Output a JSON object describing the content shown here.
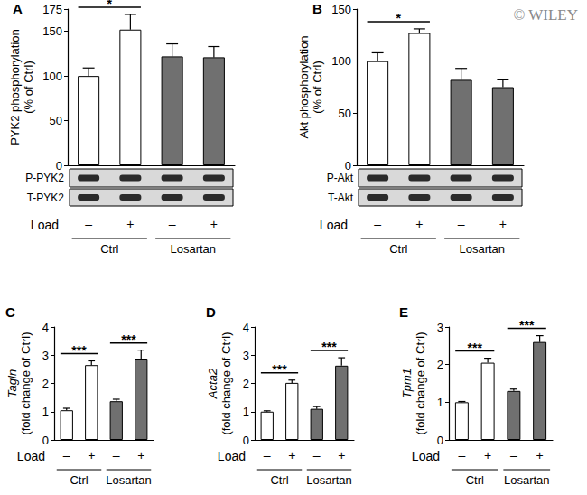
{
  "watermark": "© WILEY",
  "chart_data": [
    {
      "panel": "A",
      "type": "bar",
      "y_label": [
        "PYK2 phosphorylation",
        "(% of Ctrl)"
      ],
      "categories": [
        "–",
        "+",
        "–",
        "+"
      ],
      "x_label": "Load",
      "values": [
        100,
        152,
        122,
        121
      ],
      "errors": [
        9,
        17,
        14,
        12
      ],
      "colors": [
        "#ffffff",
        "#ffffff",
        "#707070",
        "#707070"
      ],
      "ylim": [
        0,
        175
      ],
      "yticks": [
        0,
        50,
        100,
        150
      ],
      "groups": [
        {
          "label": "Ctrl",
          "span": [
            0,
            1
          ]
        },
        {
          "label": "Losartan",
          "span": [
            2,
            3
          ]
        }
      ],
      "significance": [
        {
          "pair": [
            0,
            1
          ],
          "label": "*"
        }
      ],
      "blots": [
        "P-PYK2",
        "T-PYK2"
      ]
    },
    {
      "panel": "B",
      "type": "bar",
      "y_label": [
        "Akt phosphorylation",
        "(% of Ctrl)"
      ],
      "categories": [
        "–",
        "+",
        "–",
        "+"
      ],
      "x_label": "Load",
      "values": [
        100,
        127,
        82,
        75
      ],
      "errors": [
        8,
        4,
        11,
        7
      ],
      "colors": [
        "#ffffff",
        "#ffffff",
        "#707070",
        "#707070"
      ],
      "ylim": [
        0,
        150
      ],
      "yticks": [
        0,
        50,
        100,
        150
      ],
      "groups": [
        {
          "label": "Ctrl",
          "span": [
            0,
            1
          ]
        },
        {
          "label": "Losartan",
          "span": [
            2,
            3
          ]
        }
      ],
      "significance": [
        {
          "pair": [
            0,
            1
          ],
          "label": "*"
        }
      ],
      "blots": [
        "P-Akt",
        "T-Akt"
      ]
    },
    {
      "panel": "C",
      "type": "bar",
      "y_label": [
        "Tagln",
        "(fold change of Ctrl)"
      ],
      "categories": [
        "–",
        "+",
        "–",
        "+"
      ],
      "x_label": "Load",
      "values": [
        1.05,
        2.65,
        1.37,
        2.88
      ],
      "errors": [
        0.07,
        0.15,
        0.07,
        0.3
      ],
      "colors": [
        "#ffffff",
        "#ffffff",
        "#707070",
        "#707070"
      ],
      "ylim": [
        0,
        4
      ],
      "yticks": [
        0,
        1,
        2,
        3,
        4
      ],
      "groups": [
        {
          "label": "Ctrl",
          "span": [
            0,
            1
          ]
        },
        {
          "label": "Losartan",
          "span": [
            2,
            3
          ]
        }
      ],
      "significance": [
        {
          "pair": [
            0,
            1
          ],
          "label": "***"
        },
        {
          "pair": [
            2,
            3
          ],
          "label": "***"
        }
      ]
    },
    {
      "panel": "D",
      "type": "bar",
      "y_label": [
        "Acta2",
        "(fold change of Ctrl)"
      ],
      "categories": [
        "–",
        "+",
        "–",
        "+"
      ],
      "x_label": "Load",
      "values": [
        1.0,
        2.02,
        1.1,
        2.63
      ],
      "errors": [
        0.03,
        0.1,
        0.08,
        0.28
      ],
      "colors": [
        "#ffffff",
        "#ffffff",
        "#707070",
        "#707070"
      ],
      "ylim": [
        0,
        4
      ],
      "yticks": [
        0,
        1,
        2,
        3,
        4
      ],
      "groups": [
        {
          "label": "Ctrl",
          "span": [
            0,
            1
          ]
        },
        {
          "label": "Losartan",
          "span": [
            2,
            3
          ]
        }
      ],
      "significance": [
        {
          "pair": [
            0,
            1
          ],
          "label": "***"
        },
        {
          "pair": [
            2,
            3
          ],
          "label": "***"
        }
      ]
    },
    {
      "panel": "E",
      "type": "bar",
      "y_label": [
        "Tpm1",
        "(fold change of Ctrl)"
      ],
      "categories": [
        "–",
        "+",
        "–",
        "+"
      ],
      "x_label": "Load",
      "values": [
        1.0,
        2.05,
        1.3,
        2.6
      ],
      "errors": [
        0.02,
        0.12,
        0.05,
        0.17
      ],
      "colors": [
        "#ffffff",
        "#ffffff",
        "#707070",
        "#707070"
      ],
      "ylim": [
        0,
        3
      ],
      "yticks": [
        0,
        1,
        2,
        3
      ],
      "groups": [
        {
          "label": "Ctrl",
          "span": [
            0,
            1
          ]
        },
        {
          "label": "Losartan",
          "span": [
            2,
            3
          ]
        }
      ],
      "significance": [
        {
          "pair": [
            0,
            1
          ],
          "label": "***"
        },
        {
          "pair": [
            2,
            3
          ],
          "label": "***"
        }
      ]
    }
  ]
}
